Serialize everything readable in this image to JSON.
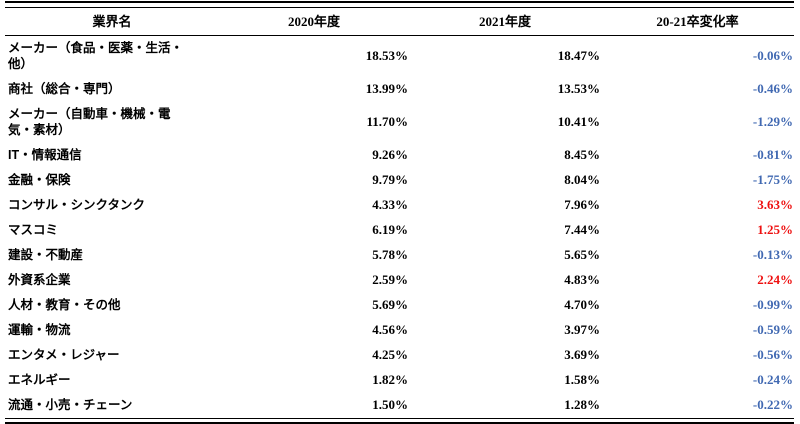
{
  "table": {
    "columns": {
      "industry": "業界名",
      "y2020": "2020年度",
      "y2021": "2021年度",
      "change": "20-21卒変化率"
    },
    "rows": [
      {
        "industry": "メーカー（食品・医薬・生活・\n他）",
        "y2020": "18.53%",
        "y2021": "18.47%",
        "change": "-0.06%"
      },
      {
        "industry": "商社（総合・専門）",
        "y2020": "13.99%",
        "y2021": "13.53%",
        "change": "-0.46%"
      },
      {
        "industry": "メーカー（自動車・機械・電\n気・素材）",
        "y2020": "11.70%",
        "y2021": "10.41%",
        "change": "-1.29%"
      },
      {
        "industry": "IT・情報通信",
        "y2020": "9.26%",
        "y2021": "8.45%",
        "change": "-0.81%"
      },
      {
        "industry": "金融・保険",
        "y2020": "9.79%",
        "y2021": "8.04%",
        "change": "-1.75%"
      },
      {
        "industry": "コンサル・シンクタンク",
        "y2020": "4.33%",
        "y2021": "7.96%",
        "change": "3.63%"
      },
      {
        "industry": "マスコミ",
        "y2020": "6.19%",
        "y2021": "7.44%",
        "change": "1.25%"
      },
      {
        "industry": "建設・不動産",
        "y2020": "5.78%",
        "y2021": "5.65%",
        "change": "-0.13%"
      },
      {
        "industry": "外資系企業",
        "y2020": "2.59%",
        "y2021": "4.83%",
        "change": "2.24%"
      },
      {
        "industry": "人材・教育・その他",
        "y2020": "5.69%",
        "y2021": "4.70%",
        "change": "-0.99%"
      },
      {
        "industry": "運輸・物流",
        "y2020": "4.56%",
        "y2021": "3.97%",
        "change": "-0.59%"
      },
      {
        "industry": "エンタメ・レジャー",
        "y2020": "4.25%",
        "y2021": "3.69%",
        "change": "-0.56%"
      },
      {
        "industry": "エネルギー",
        "y2020": "1.82%",
        "y2021": "1.58%",
        "change": "-0.24%"
      },
      {
        "industry": "流通・小売・チェーン",
        "y2020": "1.50%",
        "y2021": "1.28%",
        "change": "-0.22%"
      }
    ]
  },
  "colors": {
    "negative_change": "#4169b2",
    "positive_change": "#ee1111",
    "text": "#000000",
    "rule": "#000000"
  }
}
